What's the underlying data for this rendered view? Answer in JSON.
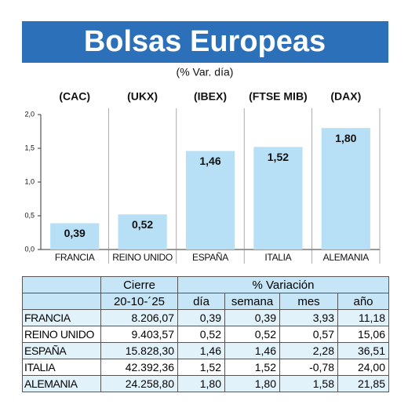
{
  "chart_data": {
    "type": "bar",
    "title": "Bolsas Europeas",
    "subtitle": "(% Var. día)",
    "index_labels": [
      "(CAC)",
      "(UKX)",
      "(IBEX)",
      "(FTSE MIB)",
      "(DAX)"
    ],
    "categories": [
      "FRANCIA",
      "REINO UNIDO",
      "ESPAÑA",
      "ITALIA",
      "ALEMANIA"
    ],
    "values": [
      0.39,
      0.52,
      1.46,
      1.52,
      1.8
    ],
    "value_labels": [
      "0,39",
      "0,52",
      "1,46",
      "1,52",
      "1,80"
    ],
    "color": "#b7dff5",
    "ylim": [
      0,
      2.0
    ],
    "yticks": [
      {
        "value": 0,
        "label": "0,0"
      },
      {
        "value": 0.5,
        "label": "0,5"
      },
      {
        "value": 1.0,
        "label": "1,0"
      },
      {
        "value": 1.5,
        "label": "1,5"
      },
      {
        "value": 2.0,
        "label": "2,0"
      }
    ]
  },
  "table": {
    "header_top": [
      "Cierre",
      "% Variación"
    ],
    "header": [
      "20-10-´25",
      "día",
      "semana",
      "mes",
      "año"
    ],
    "rows": [
      [
        "FRANCIA",
        "8.206,07",
        "0,39",
        "0,39",
        "3,93",
        "11,18"
      ],
      [
        "REINO UNIDO",
        "9.403,57",
        "0,52",
        "0,52",
        "0,57",
        "15,06"
      ],
      [
        "ESPAÑA",
        "15.828,30",
        "1,46",
        "1,46",
        "2,28",
        "36,51"
      ],
      [
        "ITALIA",
        "42.392,36",
        "1,52",
        "1,52",
        "-0,78",
        "24,00"
      ],
      [
        "ALEMANIA",
        "24.258,80",
        "1,80",
        "1,80",
        "1,58",
        "21,85"
      ]
    ]
  }
}
